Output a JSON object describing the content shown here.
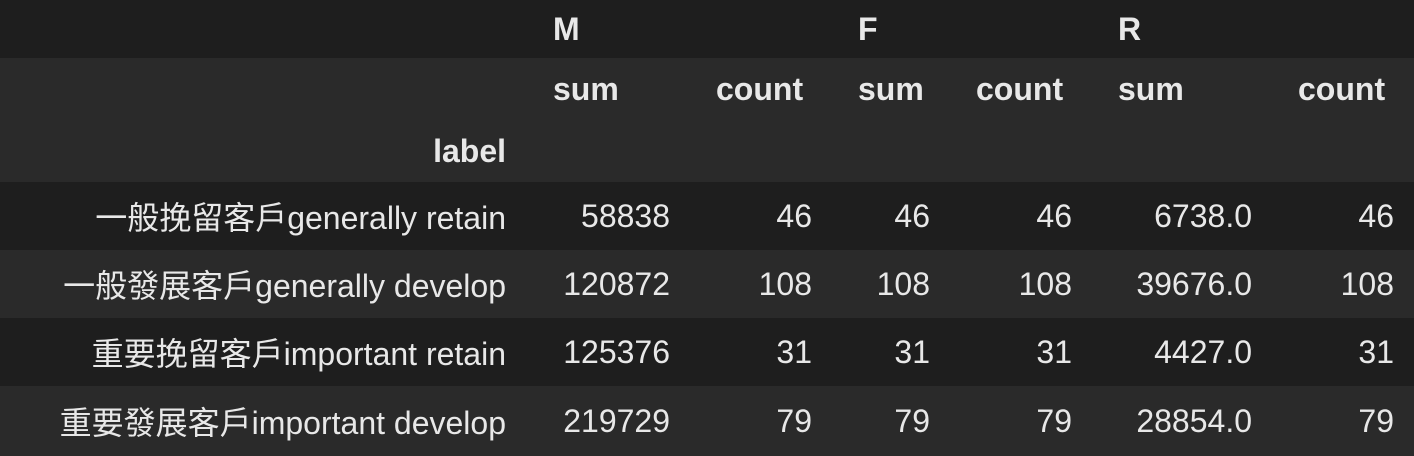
{
  "header": {
    "groups": [
      "M",
      "F",
      "R"
    ],
    "sub": [
      "sum",
      "count",
      "sum",
      "count",
      "sum",
      "count"
    ],
    "index_name": "label"
  },
  "rows": [
    {
      "label": "一般挽留客戶generally retain",
      "m_sum": "58838",
      "m_count": "46",
      "f_sum": "46",
      "f_count": "46",
      "r_sum": "6738.0",
      "r_count": "46"
    },
    {
      "label": "一般發展客戶generally develop",
      "m_sum": "120872",
      "m_count": "108",
      "f_sum": "108",
      "f_count": "108",
      "r_sum": "39676.0",
      "r_count": "108"
    },
    {
      "label": "重要挽留客戶important retain",
      "m_sum": "125376",
      "m_count": "31",
      "f_sum": "31",
      "f_count": "31",
      "r_sum": "4427.0",
      "r_count": "31"
    },
    {
      "label": "重要發展客戶important develop",
      "m_sum": "219729",
      "m_count": "79",
      "f_sum": "79",
      "f_count": "79",
      "r_sum": "28854.0",
      "r_count": "79"
    }
  ]
}
